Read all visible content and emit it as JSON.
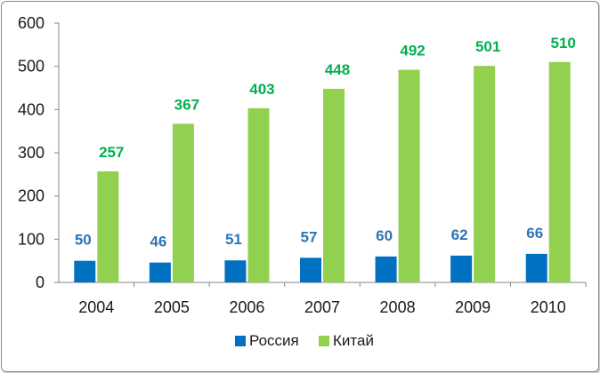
{
  "chart_data": {
    "type": "bar",
    "categories": [
      "2004",
      "2005",
      "2006",
      "2007",
      "2008",
      "2009",
      "2010"
    ],
    "series": [
      {
        "name": "Россия",
        "values": [
          50,
          46,
          51,
          57,
          60,
          62,
          66
        ],
        "color": "#0070c0",
        "label_color": "#2e75b6"
      },
      {
        "name": "Китай",
        "values": [
          257,
          367,
          403,
          448,
          492,
          501,
          510
        ],
        "color": "#92d050",
        "label_color": "#00b050"
      }
    ],
    "title": "",
    "xlabel": "",
    "ylabel": "",
    "ylim": [
      0,
      600
    ],
    "yticks": [
      "0",
      "100",
      "200",
      "300",
      "400",
      "500",
      "600"
    ],
    "grid": false,
    "legend": "bottom",
    "data_labels": true
  }
}
